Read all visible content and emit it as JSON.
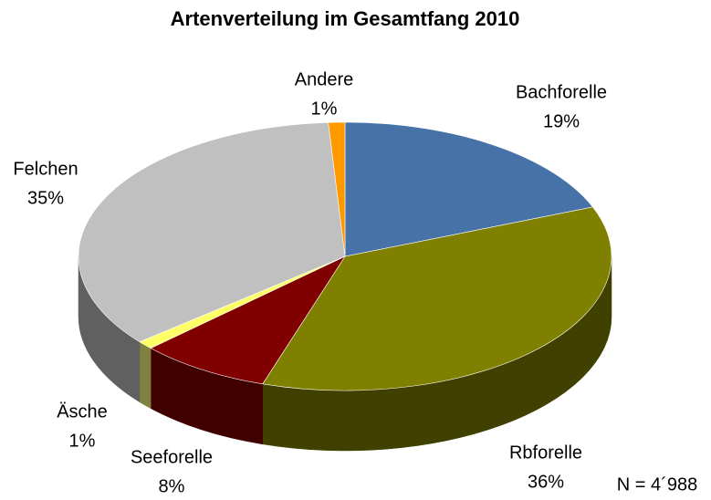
{
  "chart_data": {
    "type": "pie",
    "title": "Artenverteilung im Gesamtfang 2010",
    "categories": [
      "Bachforelle",
      "Rbforelle",
      "Seeforelle",
      "Äsche",
      "Felchen",
      "Andere"
    ],
    "values": [
      19,
      36,
      8,
      1,
      35,
      1
    ],
    "value_labels": [
      "19%",
      "36%",
      "8%",
      "1%",
      "35%",
      "1%"
    ],
    "colors": [
      "#4672a8",
      "#808000",
      "#800000",
      "#ffff66",
      "#c0c0c0",
      "#ff9900"
    ],
    "side_colors": [
      "#23395a",
      "#404000",
      "#400000",
      "#808040",
      "#606060",
      "#804d00"
    ],
    "annotation": "N = 4´988"
  }
}
